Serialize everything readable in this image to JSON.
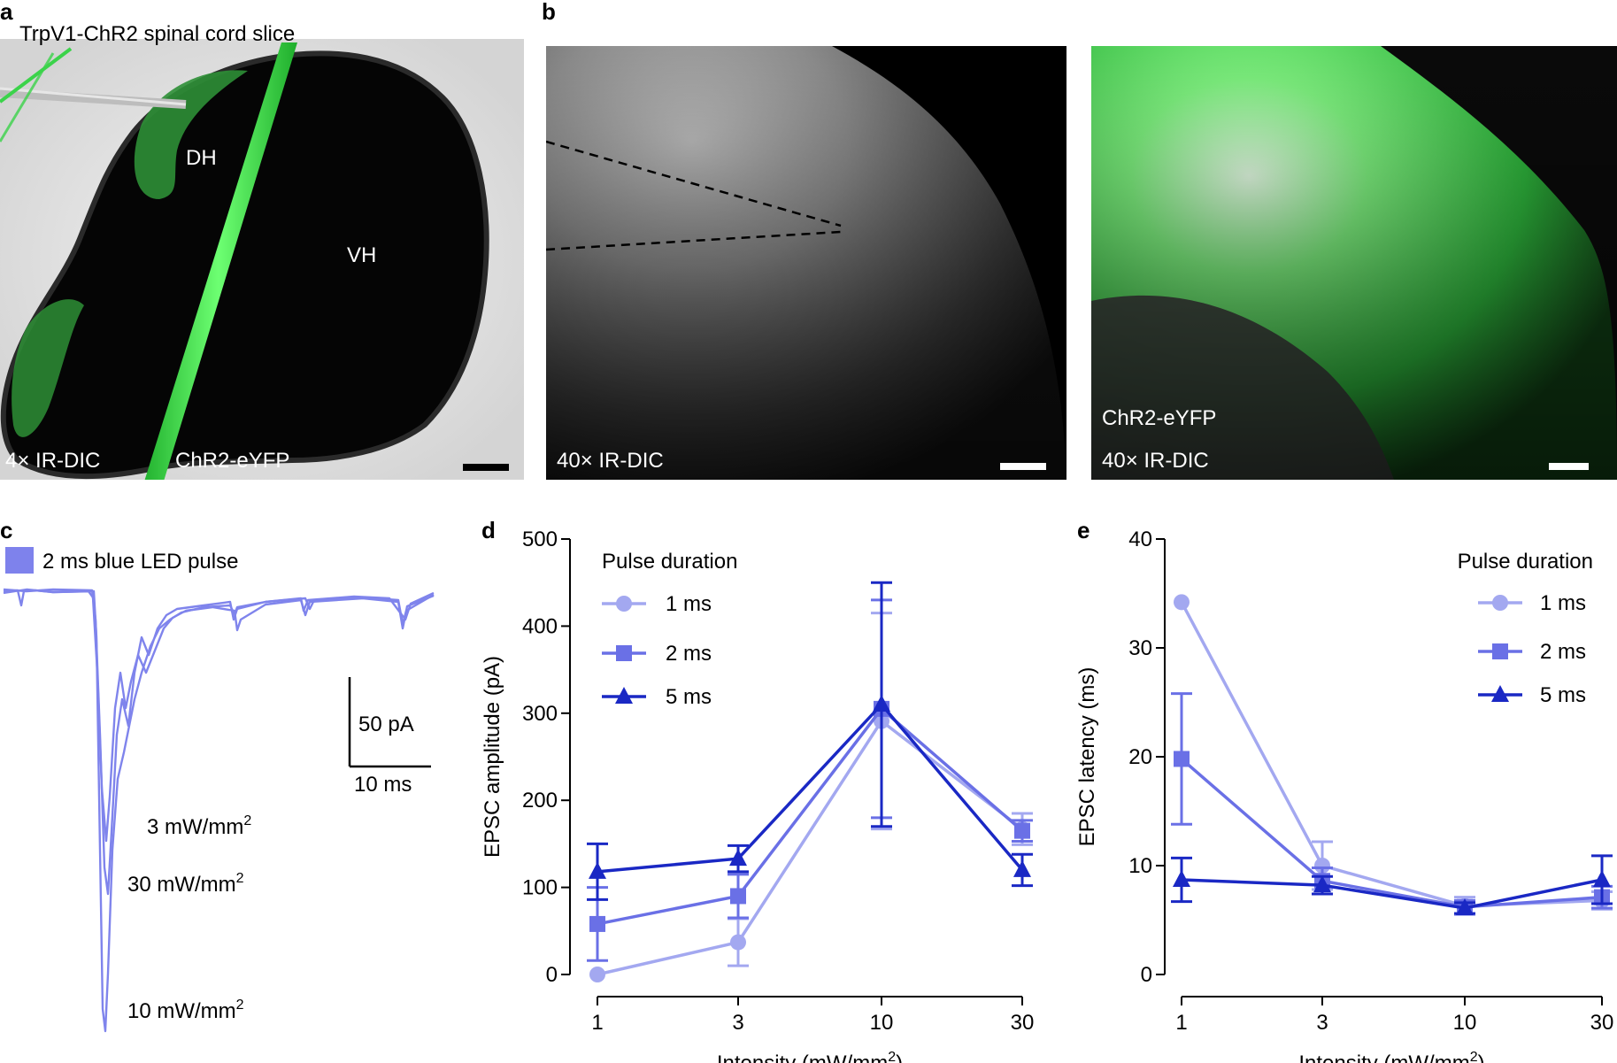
{
  "panels": {
    "a": {
      "letter": "a",
      "title": "TrpV1-ChR2 spinal cord slice",
      "label_dh": "DH",
      "label_vh": "VH",
      "label_mag": "4× IR-DIC",
      "label_chr2": "ChR2-eYFP"
    },
    "b": {
      "letter": "b",
      "left_label_mag": "40× IR-DIC",
      "right_label_chr2": "ChR2-eYFP",
      "right_label_mag": "40× IR-DIC"
    },
    "c": {
      "letter": "c",
      "legend": "2 ms blue LED pulse",
      "scale_y": "50 pA",
      "scale_x": "10 ms",
      "traces": [
        {
          "label": "3 mW/mm",
          "sup": "2"
        },
        {
          "label": "30 mW/mm",
          "sup": "2"
        },
        {
          "label": "10 mW/mm",
          "sup": "2"
        }
      ]
    }
  },
  "colors": {
    "series_1ms": "#a3a8f0",
    "series_2ms": "#6a70e6",
    "series_5ms": "#1a28c4",
    "trace": "#7f84ec",
    "legend_box": "#7e82ec",
    "fluorescence": "#33e04a"
  },
  "chart_data": [
    {
      "panel": "d",
      "type": "line",
      "ylabel": "EPSC amplitude (pA)",
      "xlabel": "Intensity (mW/mm",
      "xlabel_sup": "2",
      "xlabel_end": ")",
      "x": [
        "1",
        "3",
        "10",
        "30"
      ],
      "ylim": [
        0,
        500
      ],
      "yticks": [
        0,
        100,
        200,
        300,
        400,
        500
      ],
      "legend_title": "Pulse duration",
      "legend_position": "top-left",
      "series": [
        {
          "name": "1 ms",
          "marker": "circle",
          "values": [
            0,
            37,
            291,
            167
          ],
          "err": [
            0,
            27,
            124,
            18
          ]
        },
        {
          "name": "2 ms",
          "marker": "square",
          "values": [
            58,
            90,
            305,
            165
          ],
          "err": [
            42,
            25,
            125,
            12
          ]
        },
        {
          "name": "5 ms",
          "marker": "triangle",
          "values": [
            118,
            133,
            310,
            120
          ],
          "err": [
            32,
            15,
            140,
            18
          ]
        }
      ]
    },
    {
      "panel": "e",
      "type": "line",
      "ylabel": "EPSC latency (ms)",
      "xlabel": "Intensity (mW/mm",
      "xlabel_sup": "2",
      "xlabel_end": ")",
      "x": [
        "1",
        "3",
        "10",
        "30"
      ],
      "ylim": [
        0,
        40
      ],
      "yticks": [
        0,
        10,
        20,
        30,
        40
      ],
      "legend_title": "Pulse duration",
      "legend_position": "top-right",
      "series": [
        {
          "name": "1 ms",
          "marker": "circle",
          "values": [
            34.2,
            10.0,
            6.3,
            6.8
          ],
          "err": [
            0,
            2.2,
            0.8,
            0.8
          ]
        },
        {
          "name": "2 ms",
          "marker": "square",
          "values": [
            19.8,
            8.6,
            6.2,
            7.1
          ],
          "err": [
            6.0,
            1.2,
            0.6,
            1.0
          ]
        },
        {
          "name": "5 ms",
          "marker": "triangle",
          "values": [
            8.7,
            8.2,
            6.1,
            8.7
          ],
          "err": [
            2.0,
            0.8,
            0.5,
            2.2
          ]
        }
      ]
    }
  ]
}
